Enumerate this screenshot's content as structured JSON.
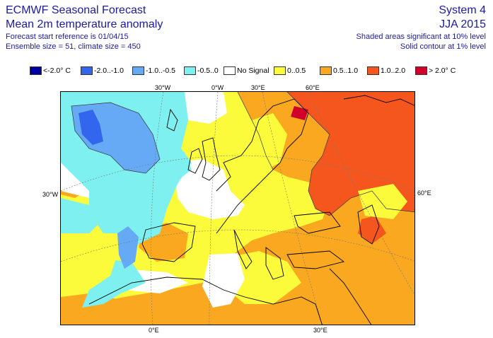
{
  "header": {
    "title_line1": "ECMWF Seasonal Forecast",
    "title_line2": "Mean 2m temperature anomaly",
    "info_line1": "Forecast start reference is 01/04/15",
    "info_line2": "Ensemble size = 51, climate size = 450",
    "system": "System 4",
    "season": "JJA 2015",
    "sig_note1": "Shaded areas significant at 10% level",
    "sig_note2": "Solid contour at 1% level"
  },
  "legend": [
    {
      "label": "<-2.0° C",
      "color": "#0000a0"
    },
    {
      "label": "-2.0..-1.0",
      "color": "#3366ee"
    },
    {
      "label": "-1.0..-0.5",
      "color": "#66aaf5"
    },
    {
      "label": "-0.5..0",
      "color": "#7ff0f0"
    },
    {
      "label": "No Signal",
      "color": "#ffffff"
    },
    {
      "label": "0..0.5",
      "color": "#fbfb3c"
    },
    {
      "label": "0.5..1.0",
      "color": "#f9a820"
    },
    {
      "label": "1.0..2.0",
      "color": "#f5561e"
    },
    {
      "label": "> 2.0° C",
      "color": "#d0002a"
    }
  ],
  "map_labels": {
    "lon_top_30w": "30°W",
    "lon_top_0": "0°W",
    "lon_top_30e": "30°E",
    "lon_top_60e": "60°E",
    "lat_left_30w": "30°W",
    "lat_right_60e": "60°E",
    "lon_bottom_0e": "0°E",
    "lon_bottom_30e": "30°E"
  }
}
